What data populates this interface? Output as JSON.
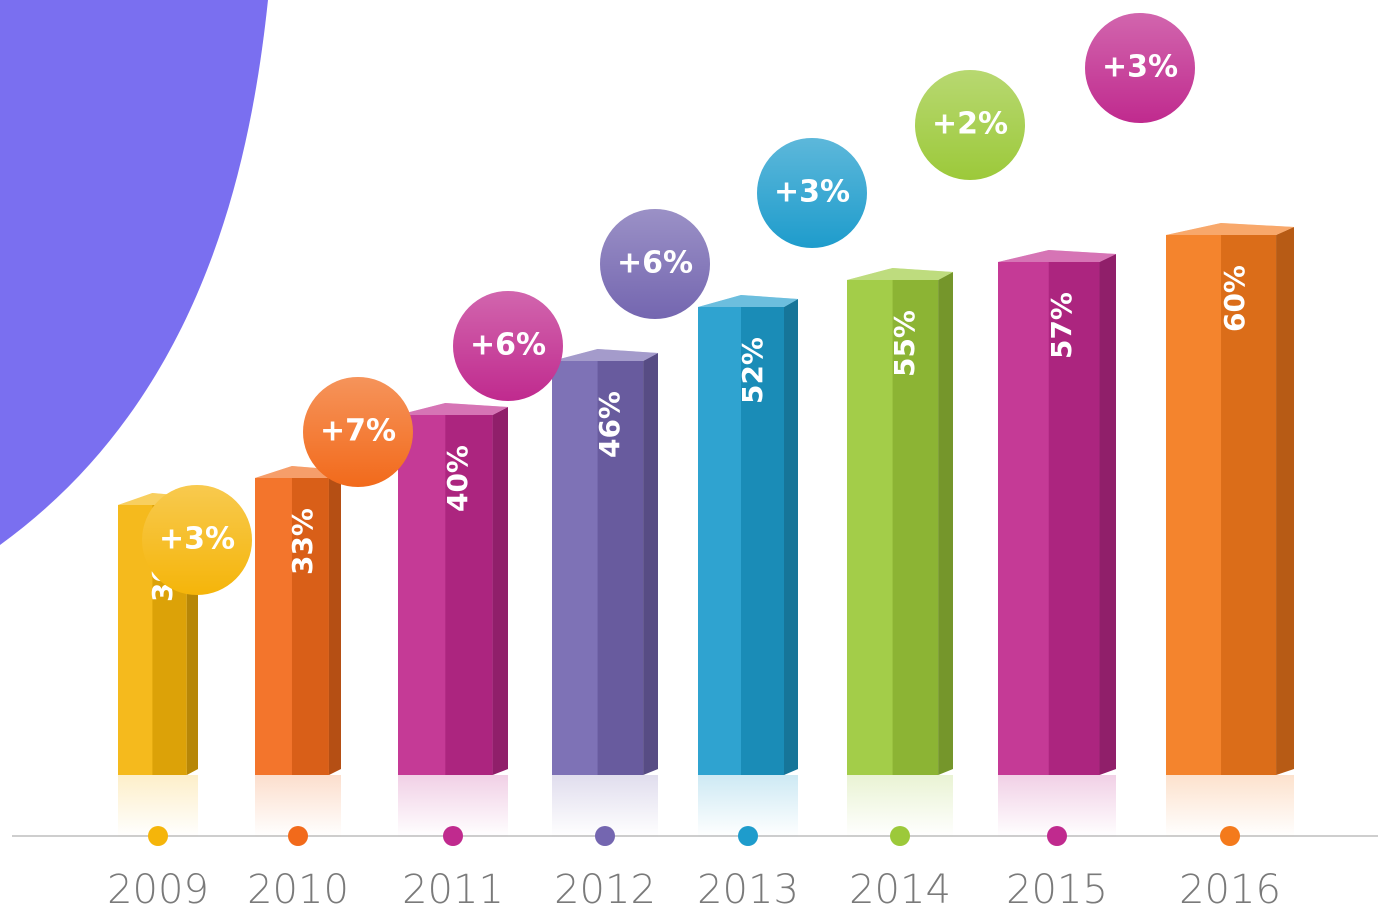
{
  "chart_data": {
    "type": "bar",
    "categories": [
      "2009",
      "2010",
      "2011",
      "2012",
      "2013",
      "2014",
      "2015",
      "2016"
    ],
    "values": [
      30,
      33,
      40,
      46,
      52,
      55,
      57,
      60
    ],
    "value_labels": [
      "30%",
      "33%",
      "40%",
      "46%",
      "52%",
      "55%",
      "57%",
      "60%"
    ],
    "colors": [
      "#f5b50a",
      "#f26a1b",
      "#c02a8e",
      "#7466b0",
      "#1e9ccc",
      "#9cc93a",
      "#c02a8e",
      "#f47a1c"
    ],
    "changes": [
      3,
      7,
      6,
      6,
      3,
      2,
      3
    ],
    "change_labels": [
      "+3%",
      "+7%",
      "+6%",
      "+6%",
      "+3%",
      "+2%",
      "+3%"
    ]
  }
}
